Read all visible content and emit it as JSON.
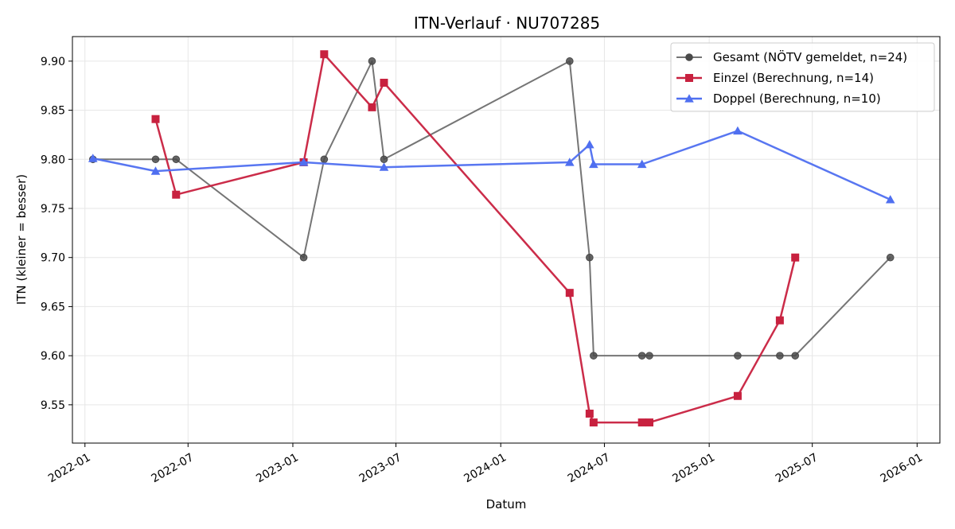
{
  "chart_data": {
    "type": "line",
    "title": "ITN-Verlauf · NU707285",
    "xlabel": "Datum",
    "ylabel": "ITN  (kleiner = besser)",
    "xlim": [
      "2021-12-10",
      "2026-02-10"
    ],
    "ylim": [
      9.511,
      9.925
    ],
    "x_ticks": [
      "2022-01",
      "2022-07",
      "2023-01",
      "2023-07",
      "2024-01",
      "2024-07",
      "2025-01",
      "2025-07",
      "2026-01"
    ],
    "y_ticks": [
      "9.55",
      "9.60",
      "9.65",
      "9.70",
      "9.75",
      "9.80",
      "9.85",
      "9.90"
    ],
    "grid": true,
    "legend_position": "top-right",
    "series": [
      {
        "name": "Gesamt (NÖTV gemeldet, n=24)",
        "color": "#757575",
        "marker": "circle",
        "points": [
          {
            "x": "2022-01-15",
            "y": 9.8
          },
          {
            "x": "2022-05-05",
            "y": 9.8
          },
          {
            "x": "2022-06-10",
            "y": 9.8
          },
          {
            "x": "2023-01-20",
            "y": 9.7
          },
          {
            "x": "2023-02-25",
            "y": 9.8
          },
          {
            "x": "2023-05-20",
            "y": 9.9
          },
          {
            "x": "2023-06-10",
            "y": 9.8
          },
          {
            "x": "2024-05-01",
            "y": 9.9
          },
          {
            "x": "2024-06-05",
            "y": 9.7
          },
          {
            "x": "2024-06-12",
            "y": 9.6
          },
          {
            "x": "2024-09-05",
            "y": 9.6
          },
          {
            "x": "2024-09-18",
            "y": 9.6
          },
          {
            "x": "2025-02-20",
            "y": 9.6
          },
          {
            "x": "2025-05-05",
            "y": 9.6
          },
          {
            "x": "2025-06-01",
            "y": 9.6
          },
          {
            "x": "2025-11-15",
            "y": 9.7
          }
        ]
      },
      {
        "name": "Einzel (Berechnung, n=14)",
        "color": "#c8213f",
        "marker": "square",
        "points": [
          {
            "x": "2022-05-05",
            "y": 9.841
          },
          {
            "x": "2022-06-10",
            "y": 9.764
          },
          {
            "x": "2023-01-20",
            "y": 9.797
          },
          {
            "x": "2023-02-25",
            "y": 9.907
          },
          {
            "x": "2023-05-20",
            "y": 9.853
          },
          {
            "x": "2023-06-10",
            "y": 9.878
          },
          {
            "x": "2024-05-01",
            "y": 9.664
          },
          {
            "x": "2024-06-05",
            "y": 9.541
          },
          {
            "x": "2024-06-12",
            "y": 9.532
          },
          {
            "x": "2024-09-05",
            "y": 9.532
          },
          {
            "x": "2024-09-18",
            "y": 9.532
          },
          {
            "x": "2025-02-20",
            "y": 9.559
          },
          {
            "x": "2025-05-05",
            "y": 9.636
          },
          {
            "x": "2025-06-01",
            "y": 9.7
          }
        ]
      },
      {
        "name": "Doppel (Berechnung, n=10)",
        "color": "#4f6ff0",
        "marker": "triangle",
        "points": [
          {
            "x": "2022-01-15",
            "y": 9.801
          },
          {
            "x": "2022-05-05",
            "y": 9.788
          },
          {
            "x": "2023-01-20",
            "y": 9.797
          },
          {
            "x": "2023-06-10",
            "y": 9.792
          },
          {
            "x": "2024-05-01",
            "y": 9.797
          },
          {
            "x": "2024-06-05",
            "y": 9.815
          },
          {
            "x": "2024-06-12",
            "y": 9.795
          },
          {
            "x": "2024-09-05",
            "y": 9.795
          },
          {
            "x": "2025-02-20",
            "y": 9.829
          },
          {
            "x": "2025-11-15",
            "y": 9.759
          }
        ]
      }
    ]
  }
}
